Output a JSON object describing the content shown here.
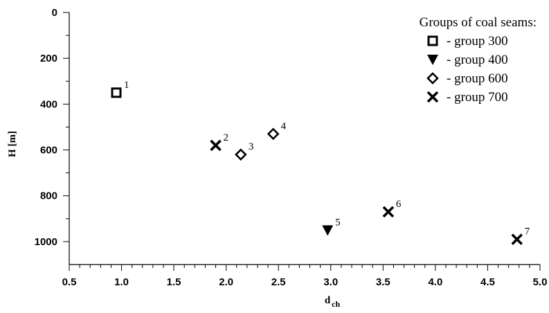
{
  "chart_data": {
    "type": "scatter",
    "xlabel": "d",
    "xlabel_sub": "ch",
    "ylabel": "H [m]",
    "xlim": [
      0.5,
      5.0
    ],
    "ylim": [
      0,
      1100
    ],
    "y_inverted": true,
    "xticks": [
      "0.5",
      "1.0",
      "1.5",
      "2.0",
      "2.5",
      "3.0",
      "3.5",
      "4.0",
      "4.5",
      "5.0"
    ],
    "yticks": [
      "0",
      "200",
      "400",
      "600",
      "800",
      "1000"
    ],
    "legend": {
      "title": "Groups of coal seams:",
      "position": "top-right",
      "entries": [
        {
          "label": "- group 300",
          "marker": "square"
        },
        {
          "label": "- group 400",
          "marker": "triangle-down"
        },
        {
          "label": "- group 600",
          "marker": "diamond"
        },
        {
          "label": "- group 700",
          "marker": "x"
        }
      ]
    },
    "series": [
      {
        "name": "group 300",
        "marker": "square",
        "points": [
          {
            "x": 0.95,
            "y": 350,
            "label": "1"
          }
        ]
      },
      {
        "name": "group 400",
        "marker": "triangle-down",
        "points": [
          {
            "x": 2.97,
            "y": 950,
            "label": "5"
          }
        ]
      },
      {
        "name": "group 600",
        "marker": "diamond",
        "points": [
          {
            "x": 2.14,
            "y": 620,
            "label": "3"
          },
          {
            "x": 2.45,
            "y": 530,
            "label": "4"
          }
        ]
      },
      {
        "name": "group 700",
        "marker": "x",
        "points": [
          {
            "x": 1.9,
            "y": 580,
            "label": "2"
          },
          {
            "x": 3.55,
            "y": 870,
            "label": "6"
          },
          {
            "x": 4.78,
            "y": 990,
            "label": "7"
          }
        ]
      }
    ]
  }
}
